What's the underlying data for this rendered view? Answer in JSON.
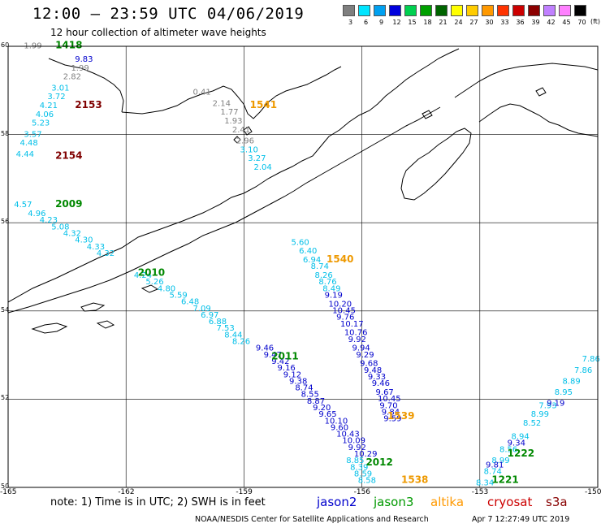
{
  "title": "12:00 — 23:59 UTC 04/06/2019",
  "subtitle": "12 hour collection of altimeter wave heights",
  "colorbar": {
    "unit": "(ft)",
    "levels": [
      {
        "label": "3",
        "color": "#7f7f7f"
      },
      {
        "label": "6",
        "color": "#00e5ff"
      },
      {
        "label": "9",
        "color": "#00a0f0"
      },
      {
        "label": "12",
        "color": "#0000dd"
      },
      {
        "label": "15",
        "color": "#00d050"
      },
      {
        "label": "18",
        "color": "#00a000"
      },
      {
        "label": "21",
        "color": "#006400"
      },
      {
        "label": "24",
        "color": "#ffff00"
      },
      {
        "label": "27",
        "color": "#ffcc00"
      },
      {
        "label": "30",
        "color": "#ff9900"
      },
      {
        "label": "33",
        "color": "#ff3300"
      },
      {
        "label": "36",
        "color": "#cc0000"
      },
      {
        "label": "39",
        "color": "#8b0000"
      },
      {
        "label": "42",
        "color": "#c080ff"
      },
      {
        "label": "45",
        "color": "#ff80ff"
      },
      {
        "label": "70",
        "color": "#000000"
      }
    ]
  },
  "axes": {
    "lon_labels": [
      "-165",
      "-162",
      "-159",
      "-156",
      "-153",
      "-150"
    ],
    "lat_labels": [
      "60",
      "58",
      "56",
      "54",
      "52",
      "50"
    ]
  },
  "footer": {
    "note": "note: 1) Time is in UTC; 2) SWH is in feet",
    "satellites": [
      {
        "name": "jason2",
        "color": "#0000cc"
      },
      {
        "name": "jason3",
        "color": "#009900"
      },
      {
        "name": "altika",
        "color": "#ff9900"
      },
      {
        "name": "cryosat",
        "color": "#cc0000"
      },
      {
        "name": "s3a",
        "color": "#880000"
      }
    ],
    "credit": "NOAA/NESDIS Center for Satellite Applications and Research",
    "timestamp": "Apr  7 12:27:49 UTC 2019"
  },
  "colors": {
    "gray": "#808080",
    "cyan": "#00bfe8",
    "blue": "#0000cc",
    "green": "#008800",
    "orange": "#ee9900",
    "darkred": "#800000"
  },
  "track_time_labels": [
    {
      "text": "1418",
      "color": "green",
      "lon": -163.8,
      "lat": 59.95
    },
    {
      "text": "2153",
      "color": "darkred",
      "lon": -163.3,
      "lat": 58.6
    },
    {
      "text": "2154",
      "color": "darkred",
      "lon": -163.8,
      "lat": 57.45
    },
    {
      "text": "1541",
      "color": "orange",
      "lon": -158.85,
      "lat": 58.6
    },
    {
      "text": "2009",
      "color": "green",
      "lon": -163.8,
      "lat": 56.35
    },
    {
      "text": "1540",
      "color": "orange",
      "lon": -156.9,
      "lat": 55.1
    },
    {
      "text": "2010",
      "color": "green",
      "lon": -161.7,
      "lat": 54.8
    },
    {
      "text": "2011",
      "color": "green",
      "lon": -158.3,
      "lat": 52.9
    },
    {
      "text": "1539",
      "color": "orange",
      "lon": -155.35,
      "lat": 51.55
    },
    {
      "text": "2012",
      "color": "green",
      "lon": -155.9,
      "lat": 50.5
    },
    {
      "text": "1538",
      "color": "orange",
      "lon": -155.0,
      "lat": 50.1
    },
    {
      "text": "1222",
      "color": "green",
      "lon": -152.3,
      "lat": 50.7
    },
    {
      "text": "1221",
      "color": "green",
      "lon": -152.7,
      "lat": 50.1
    }
  ],
  "tracks": [
    {
      "color": "gray",
      "points": [
        {
          "v": "1.99",
          "lon": -164.6,
          "lat": 59.95
        },
        {
          "v": "1.99",
          "lon": -163.4,
          "lat": 59.45
        },
        {
          "v": "2.82",
          "lon": -163.6,
          "lat": 59.25
        }
      ]
    },
    {
      "color": "blue",
      "points": [
        {
          "v": "9.83",
          "lon": -163.3,
          "lat": 59.65
        }
      ]
    },
    {
      "color": "cyan",
      "points": [
        {
          "v": "3.01",
          "lon": -163.9,
          "lat": 59.0
        },
        {
          "v": "3.72",
          "lon": -164.0,
          "lat": 58.8
        },
        {
          "v": "4.21",
          "lon": -164.2,
          "lat": 58.6
        },
        {
          "v": "4.06",
          "lon": -164.3,
          "lat": 58.4
        },
        {
          "v": "5.23",
          "lon": -164.4,
          "lat": 58.2
        },
        {
          "v": "3.57",
          "lon": -164.6,
          "lat": 57.95
        },
        {
          "v": "4.48",
          "lon": -164.7,
          "lat": 57.75
        },
        {
          "v": "4.44",
          "lon": -164.8,
          "lat": 57.5
        }
      ]
    },
    {
      "color": "gray",
      "points": [
        {
          "v": "0.41",
          "lon": -160.3,
          "lat": 58.9
        },
        {
          "v": "2.14",
          "lon": -159.8,
          "lat": 58.65
        },
        {
          "v": "1.77",
          "lon": -159.6,
          "lat": 58.45
        },
        {
          "v": "1.93",
          "lon": -159.5,
          "lat": 58.25
        },
        {
          "v": "2.41",
          "lon": -159.3,
          "lat": 58.05
        },
        {
          "v": "2.96",
          "lon": -159.2,
          "lat": 57.8
        }
      ]
    },
    {
      "color": "cyan",
      "points": [
        {
          "v": "3.10",
          "lon": -159.1,
          "lat": 57.6
        },
        {
          "v": "3.27",
          "lon": -158.9,
          "lat": 57.4
        },
        {
          "v": "2.04",
          "lon": -158.75,
          "lat": 57.2
        }
      ]
    },
    {
      "color": "cyan",
      "points": [
        {
          "v": "4.57",
          "lon": -164.85,
          "lat": 56.35
        },
        {
          "v": "4.96",
          "lon": -164.5,
          "lat": 56.15
        },
        {
          "v": "4.23",
          "lon": -164.2,
          "lat": 56.0
        },
        {
          "v": "5.08",
          "lon": -163.9,
          "lat": 55.85
        },
        {
          "v": "4.32",
          "lon": -163.6,
          "lat": 55.7
        },
        {
          "v": "4.30",
          "lon": -163.3,
          "lat": 55.55
        },
        {
          "v": "4.33",
          "lon": -163.0,
          "lat": 55.4
        },
        {
          "v": "4.32",
          "lon": -162.75,
          "lat": 55.25
        }
      ]
    },
    {
      "color": "cyan",
      "points": [
        {
          "v": "5.60",
          "lon": -157.8,
          "lat": 55.5
        },
        {
          "v": "6.40",
          "lon": -157.6,
          "lat": 55.3
        },
        {
          "v": "6.94",
          "lon": -157.5,
          "lat": 55.1
        }
      ]
    },
    {
      "color": "cyan",
      "points": [
        {
          "v": "4.24",
          "lon": -161.8,
          "lat": 54.75
        },
        {
          "v": "5.26",
          "lon": -161.5,
          "lat": 54.6
        },
        {
          "v": "4.80",
          "lon": -161.2,
          "lat": 54.45
        },
        {
          "v": "5.59",
          "lon": -160.9,
          "lat": 54.3
        },
        {
          "v": "6.48",
          "lon": -160.6,
          "lat": 54.15
        },
        {
          "v": "7.09",
          "lon": -160.3,
          "lat": 54.0
        },
        {
          "v": "6.97",
          "lon": -160.1,
          "lat": 53.85
        },
        {
          "v": "6.88",
          "lon": -159.9,
          "lat": 53.7
        },
        {
          "v": "7.53",
          "lon": -159.7,
          "lat": 53.55
        },
        {
          "v": "8.44",
          "lon": -159.5,
          "lat": 53.4
        },
        {
          "v": "8.26",
          "lon": -159.3,
          "lat": 53.25
        }
      ]
    },
    {
      "color": "cyan",
      "points": [
        {
          "v": "8.74",
          "lon": -157.3,
          "lat": 54.95
        },
        {
          "v": "8.26",
          "lon": -157.2,
          "lat": 54.75
        },
        {
          "v": "8.76",
          "lon": -157.1,
          "lat": 54.6
        },
        {
          "v": "8.49",
          "lon": -157.0,
          "lat": 54.45
        }
      ]
    },
    {
      "color": "blue",
      "points": [
        {
          "v": "9.19",
          "lon": -156.95,
          "lat": 54.3
        },
        {
          "v": "10.20",
          "lon": -156.85,
          "lat": 54.1
        },
        {
          "v": "10.45",
          "lon": -156.75,
          "lat": 53.95
        },
        {
          "v": "9.76",
          "lon": -156.65,
          "lat": 53.8
        },
        {
          "v": "10.17",
          "lon": -156.55,
          "lat": 53.65
        },
        {
          "v": "10.76",
          "lon": -156.45,
          "lat": 53.45
        },
        {
          "v": "9.92",
          "lon": -156.35,
          "lat": 53.3
        },
        {
          "v": "9.94",
          "lon": -156.25,
          "lat": 53.1
        },
        {
          "v": "9.29",
          "lon": -156.15,
          "lat": 52.95
        },
        {
          "v": "9.68",
          "lon": -156.05,
          "lat": 52.75
        },
        {
          "v": "9.48",
          "lon": -155.95,
          "lat": 52.6
        },
        {
          "v": "9.33",
          "lon": -155.85,
          "lat": 52.45
        },
        {
          "v": "9.46",
          "lon": -155.75,
          "lat": 52.3
        },
        {
          "v": "9.67",
          "lon": -155.65,
          "lat": 52.1
        },
        {
          "v": "10.45",
          "lon": -155.6,
          "lat": 51.95
        },
        {
          "v": "9.70",
          "lon": -155.55,
          "lat": 51.8
        },
        {
          "v": "9.84",
          "lon": -155.5,
          "lat": 51.65
        },
        {
          "v": "9.59",
          "lon": -155.45,
          "lat": 51.5
        }
      ]
    },
    {
      "color": "blue",
      "points": [
        {
          "v": "9.46",
          "lon": -158.7,
          "lat": 53.1
        },
        {
          "v": "9.47",
          "lon": -158.5,
          "lat": 52.95
        },
        {
          "v": "9.42",
          "lon": -158.3,
          "lat": 52.8
        },
        {
          "v": "9.16",
          "lon": -158.15,
          "lat": 52.65
        },
        {
          "v": "9.12",
          "lon": -158.0,
          "lat": 52.5
        },
        {
          "v": "9.38",
          "lon": -157.85,
          "lat": 52.35
        },
        {
          "v": "8.74",
          "lon": -157.7,
          "lat": 52.2
        },
        {
          "v": "8.55",
          "lon": -157.55,
          "lat": 52.05
        },
        {
          "v": "8.87",
          "lon": -157.4,
          "lat": 51.9
        },
        {
          "v": "9.20",
          "lon": -157.25,
          "lat": 51.75
        },
        {
          "v": "9.65",
          "lon": -157.1,
          "lat": 51.6
        },
        {
          "v": "10.10",
          "lon": -156.95,
          "lat": 51.45
        },
        {
          "v": "9.60",
          "lon": -156.8,
          "lat": 51.3
        },
        {
          "v": "10.43",
          "lon": -156.65,
          "lat": 51.15
        },
        {
          "v": "10.09",
          "lon": -156.5,
          "lat": 51.0
        },
        {
          "v": "9.92",
          "lon": -156.35,
          "lat": 50.85
        },
        {
          "v": "10.29",
          "lon": -156.2,
          "lat": 50.7
        }
      ]
    },
    {
      "color": "cyan",
      "points": [
        {
          "v": "8.85",
          "lon": -156.4,
          "lat": 50.55
        },
        {
          "v": "8.39",
          "lon": -156.3,
          "lat": 50.4
        },
        {
          "v": "8.59",
          "lon": -156.2,
          "lat": 50.25
        },
        {
          "v": "8.58",
          "lon": -156.1,
          "lat": 50.1
        }
      ]
    },
    {
      "color": "cyan",
      "points": [
        {
          "v": "8.34",
          "lon": -153.1,
          "lat": 50.05
        },
        {
          "v": "8.74",
          "lon": -152.9,
          "lat": 50.3
        },
        {
          "v": "8.99",
          "lon": -152.7,
          "lat": 50.55
        },
        {
          "v": "8.56",
          "lon": -152.5,
          "lat": 50.8
        },
        {
          "v": "8.94",
          "lon": -152.2,
          "lat": 51.1
        },
        {
          "v": "8.52",
          "lon": -151.9,
          "lat": 51.4
        },
        {
          "v": "8.99",
          "lon": -151.7,
          "lat": 51.6
        },
        {
          "v": "7.93",
          "lon": -151.5,
          "lat": 51.8
        },
        {
          "v": "8.95",
          "lon": -151.1,
          "lat": 52.1
        },
        {
          "v": "8.89",
          "lon": -150.9,
          "lat": 52.35
        },
        {
          "v": "7.86",
          "lon": -150.6,
          "lat": 52.6
        },
        {
          "v": "7.86",
          "lon": -150.4,
          "lat": 52.85
        }
      ]
    },
    {
      "color": "blue",
      "points": [
        {
          "v": "9.81",
          "lon": -152.85,
          "lat": 50.45
        },
        {
          "v": "9.34",
          "lon": -152.3,
          "lat": 50.95
        },
        {
          "v": "9.19",
          "lon": -151.3,
          "lat": 51.85
        }
      ]
    }
  ]
}
